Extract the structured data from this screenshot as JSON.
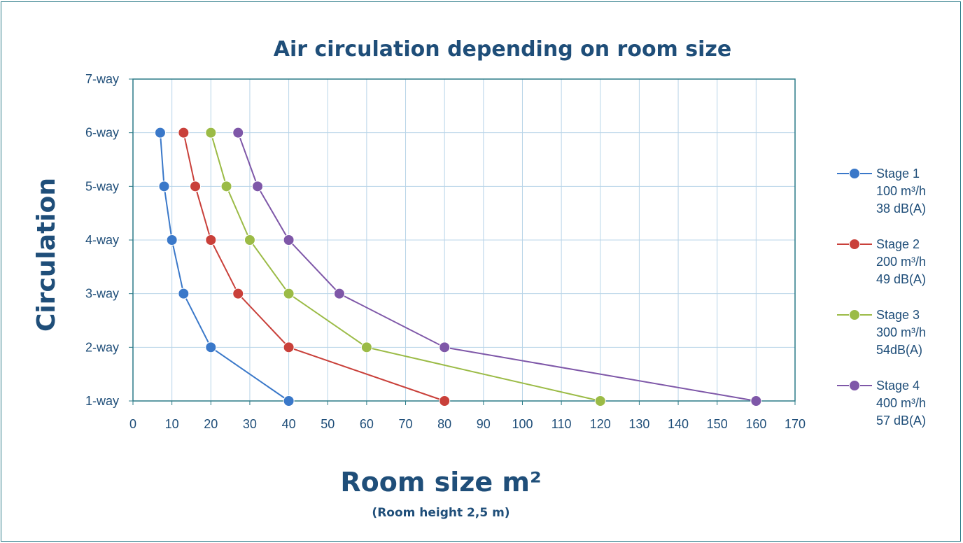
{
  "chart_data": {
    "type": "line",
    "title": "Air circulation depending on room size",
    "xlabel": "Room size m²",
    "xlabel_sub": "(Room height 2,5 m)",
    "ylabel": "Circulation",
    "xlim": [
      0,
      170
    ],
    "x_ticks": [
      "0",
      "10",
      "20",
      "30",
      "40",
      "50",
      "60",
      "70",
      "80",
      "90",
      "100",
      "110",
      "120",
      "130",
      "140",
      "150",
      "160",
      "170"
    ],
    "y_ticks": [
      "1-way",
      "2-way",
      "3-way",
      "4-way",
      "5-way",
      "6-way",
      "7-way"
    ],
    "ylim": [
      1,
      7
    ],
    "grid": true,
    "legend_position": "right",
    "series": [
      {
        "legend": [
          "Stage 1",
          "100 m³/h",
          "38 dB(A)"
        ],
        "color": "#3a78c9",
        "points": [
          [
            40,
            1
          ],
          [
            20,
            2
          ],
          [
            13,
            3
          ],
          [
            10,
            4
          ],
          [
            8,
            5
          ],
          [
            7,
            6
          ]
        ]
      },
      {
        "legend": [
          "Stage 2",
          "200 m³/h",
          "49 dB(A)"
        ],
        "color": "#c9403a",
        "points": [
          [
            80,
            1
          ],
          [
            40,
            2
          ],
          [
            27,
            3
          ],
          [
            20,
            4
          ],
          [
            16,
            5
          ],
          [
            13,
            6
          ]
        ]
      },
      {
        "legend": [
          "Stage 3",
          "300 m³/h",
          "54dB(A)"
        ],
        "color": "#9bbb46",
        "points": [
          [
            120,
            1
          ],
          [
            60,
            2
          ],
          [
            40,
            3
          ],
          [
            30,
            4
          ],
          [
            24,
            5
          ],
          [
            20,
            6
          ]
        ]
      },
      {
        "legend": [
          "Stage 4",
          "400 m³/h",
          "57 dB(A)"
        ],
        "color": "#7e57a8",
        "points": [
          [
            160,
            1
          ],
          [
            80,
            2
          ],
          [
            53,
            3
          ],
          [
            40,
            4
          ],
          [
            32,
            5
          ],
          [
            27,
            6
          ]
        ]
      }
    ]
  }
}
